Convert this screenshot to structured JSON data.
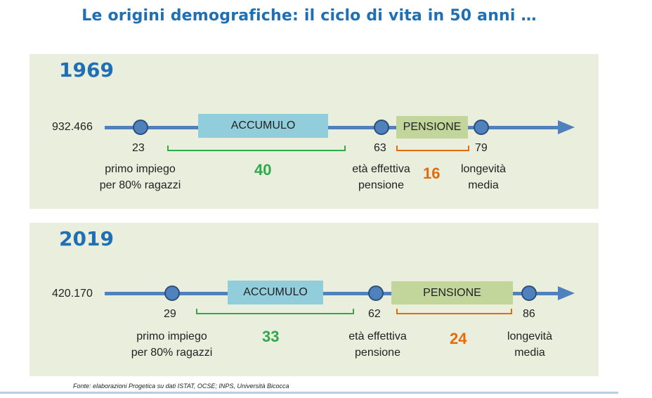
{
  "title": "Le origini demografiche: il ciclo di vita in 50 anni …",
  "panels": [
    {
      "year": "1969",
      "count": "932.466",
      "accumulo_label": "ACCUMULO",
      "pensione_label": "PENSIONE",
      "age_start": "23",
      "age_retire": "63",
      "age_life": "79",
      "accumulo_years": "40",
      "pensione_years": "16",
      "start_label_1": "primo impiego",
      "start_label_2": "per 80% ragazzi",
      "retire_label_1": "età effettiva",
      "retire_label_2": "pensione",
      "life_label_1": "longevità",
      "life_label_2": "media"
    },
    {
      "year": "2019",
      "count": "420.170",
      "accumulo_label": "ACCUMULO",
      "pensione_label": "PENSIONE",
      "age_start": "29",
      "age_retire": "62",
      "age_life": "86",
      "accumulo_years": "33",
      "pensione_years": "24",
      "start_label_1": "primo impiego",
      "start_label_2": "per 80% ragazzi",
      "retire_label_1": "età effettiva",
      "retire_label_2": "pensione",
      "life_label_1": "longevità",
      "life_label_2": "media"
    }
  ],
  "source": "Fonte: elaborazioni Progetica su dati ISTAT, OCSE; INPS, Università Bicocca",
  "colors": {
    "title": "#1f6fb5",
    "timeline": "#4f81bd",
    "accumulo_box": "#92cddc",
    "pensione_box": "#c2d69b",
    "accumulo_bracket": "#2eaa4a",
    "pensione_bracket": "#e36c09",
    "panel_bg": "#e9eedd"
  }
}
